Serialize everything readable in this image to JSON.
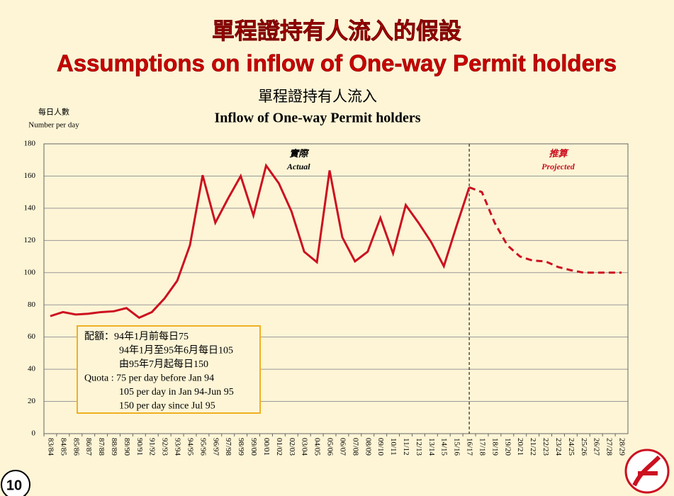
{
  "slide_title": "單程證持有人流入的假設",
  "slide_subtitle": "Assumptions on inflow of One-way Permit holders",
  "page_number": "10",
  "chart_data": {
    "type": "line",
    "title": "單程證持有人流入",
    "subtitle": "Inflow of One-way Permit holders",
    "y_label": [
      "每日人數",
      "Number per day"
    ],
    "categories": [
      "83/84",
      "84/85",
      "85/86",
      "86/87",
      "87/88",
      "88/89",
      "89/90",
      "90/91",
      "91/92",
      "92/93",
      "93/94",
      "94/95",
      "95/96",
      "96/97",
      "97/98",
      "98/99",
      "99/00",
      "00/01",
      "01/02",
      "02/03",
      "03/04",
      "04/05",
      "05/06",
      "06/07",
      "07/08",
      "08/09",
      "09/10",
      "10/11",
      "11/12",
      "12/13",
      "13/14",
      "14/15",
      "15/16",
      "16/17",
      "17/18",
      "18/19",
      "19/20",
      "20/21",
      "21/22",
      "22/23",
      "23/24",
      "24/25",
      "25/26",
      "26/27",
      "27/28",
      "28/29"
    ],
    "series": [
      {
        "name": "Actual",
        "label_zh": "實際",
        "color": "#cc1020",
        "dashed": false,
        "values": [
          73,
          75.5,
          74,
          74.5,
          75.5,
          76,
          78,
          72,
          75.5,
          84,
          95,
          117,
          160.5,
          131,
          146,
          160,
          135.5,
          166.5,
          155.5,
          138,
          113,
          106.5,
          163.5,
          122,
          107,
          113,
          134,
          112,
          142,
          131,
          119,
          104,
          129,
          153,
          null,
          null,
          null,
          null,
          null,
          null,
          null,
          null,
          null,
          null,
          null,
          null
        ]
      },
      {
        "name": "Projected",
        "label_zh": "推算",
        "color": "#cc1020",
        "dashed": true,
        "values": [
          null,
          null,
          null,
          null,
          null,
          null,
          null,
          null,
          null,
          null,
          null,
          null,
          null,
          null,
          null,
          null,
          null,
          null,
          null,
          null,
          null,
          null,
          null,
          null,
          null,
          null,
          null,
          null,
          null,
          null,
          null,
          null,
          null,
          153,
          150,
          131,
          117,
          110,
          107.5,
          107,
          103.5,
          101.5,
          100,
          100,
          100,
          100
        ]
      }
    ],
    "ylim": [
      0,
      180
    ],
    "yticks": [
      0,
      20,
      40,
      60,
      80,
      100,
      120,
      140,
      160,
      180
    ],
    "grid": true,
    "divider_category": "16/17",
    "note": [
      "配額：94年1月前每日75",
      "94年1月至95年6月每日105",
      "由95年7月起每日150",
      "Quota : 75 per day before Jan 94",
      "105 per day in Jan 94-Jun 95",
      "150 per day since Jul 95"
    ]
  }
}
